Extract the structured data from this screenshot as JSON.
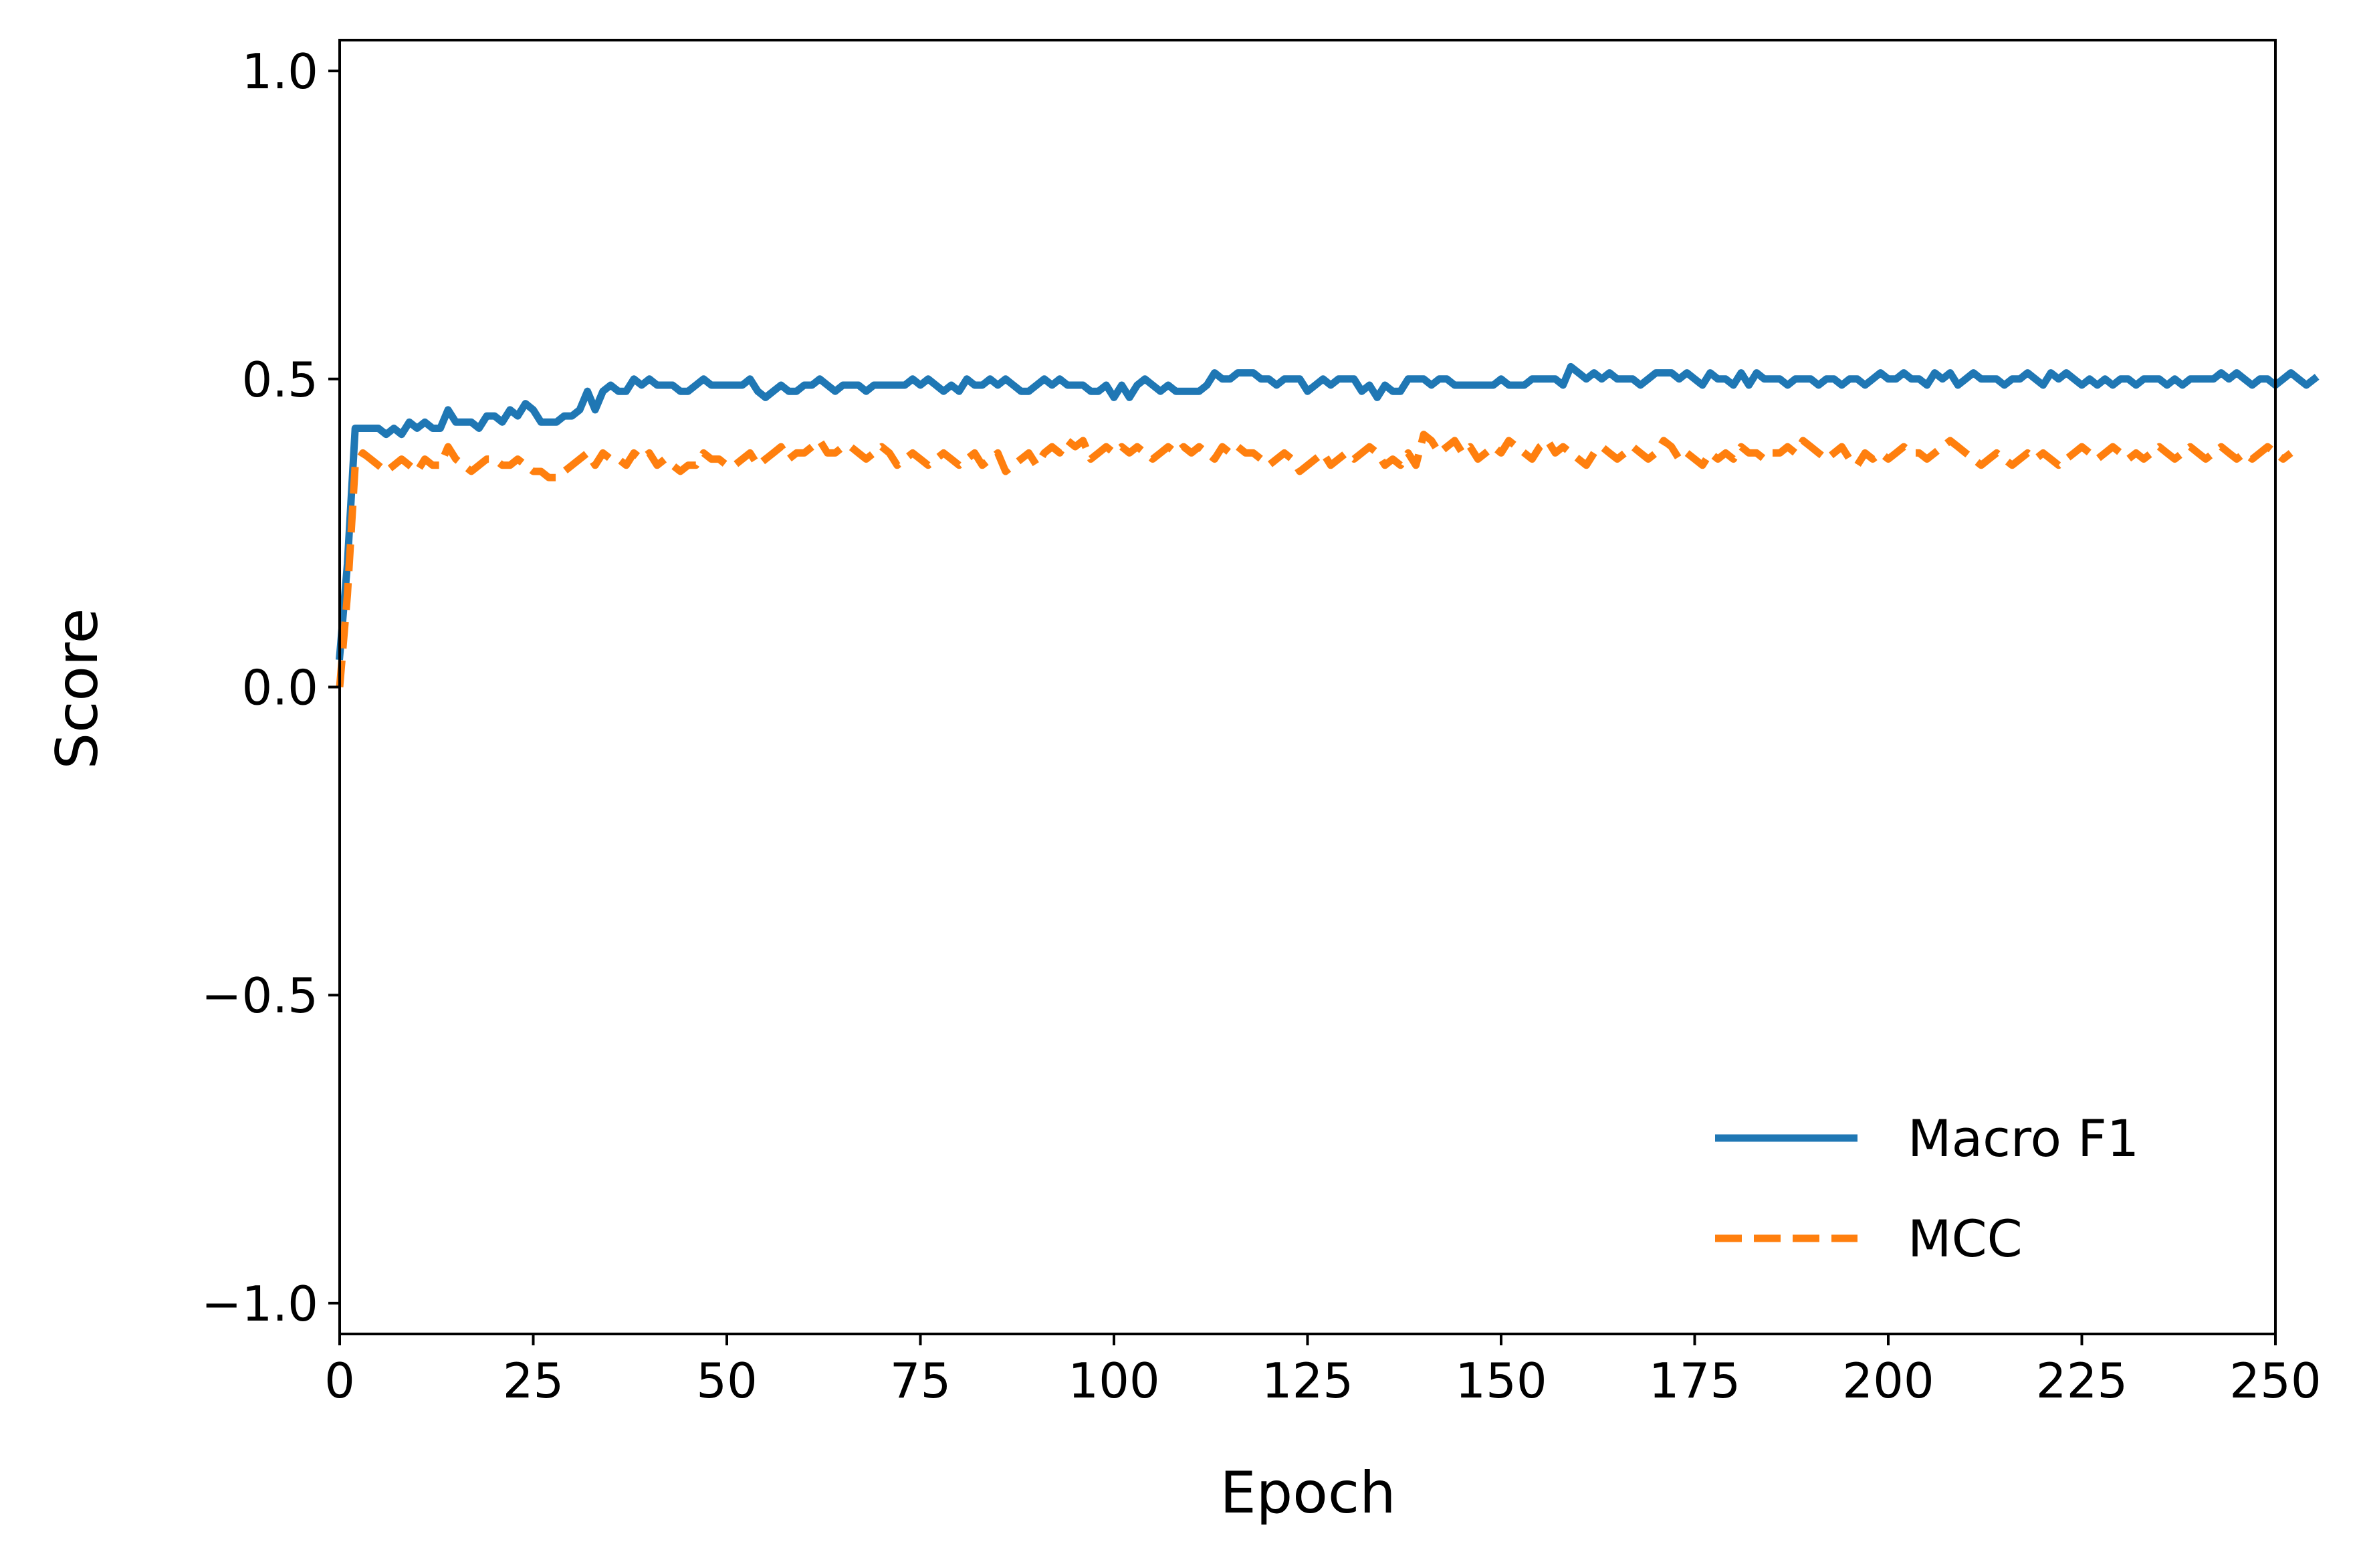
{
  "chart_data": {
    "type": "line",
    "title": "",
    "xlabel": "Epoch",
    "ylabel": "Score",
    "xlim": [
      0,
      250
    ],
    "ylim": [
      -1.05,
      1.05
    ],
    "xticks": [
      0,
      25,
      50,
      75,
      100,
      125,
      150,
      175,
      200,
      225,
      250
    ],
    "xtick_labels": [
      "0",
      "25",
      "50",
      "75",
      "100",
      "125",
      "150",
      "175",
      "200",
      "225",
      "250"
    ],
    "yticks": [
      -1.0,
      -0.5,
      0.0,
      0.5,
      1.0
    ],
    "ytick_labels": [
      "−1.0",
      "−0.5",
      "0.0",
      "0.5",
      "1.0"
    ],
    "grid": false,
    "legend_position": "lower-right",
    "x_start": 0,
    "x_step": 1,
    "series": [
      {
        "name": "Macro F1",
        "color": "#1f77b4",
        "style": "solid",
        "values": [
          0.05,
          0.2,
          0.42,
          0.42,
          0.42,
          0.42,
          0.41,
          0.42,
          0.41,
          0.43,
          0.42,
          0.43,
          0.42,
          0.42,
          0.45,
          0.43,
          0.43,
          0.43,
          0.42,
          0.44,
          0.44,
          0.43,
          0.45,
          0.44,
          0.46,
          0.45,
          0.43,
          0.43,
          0.43,
          0.44,
          0.44,
          0.45,
          0.48,
          0.45,
          0.48,
          0.49,
          0.48,
          0.48,
          0.5,
          0.49,
          0.5,
          0.49,
          0.49,
          0.49,
          0.48,
          0.48,
          0.49,
          0.5,
          0.49,
          0.49,
          0.49,
          0.49,
          0.49,
          0.5,
          0.48,
          0.47,
          0.48,
          0.49,
          0.48,
          0.48,
          0.49,
          0.49,
          0.5,
          0.49,
          0.48,
          0.49,
          0.49,
          0.49,
          0.48,
          0.49,
          0.49,
          0.49,
          0.49,
          0.49,
          0.5,
          0.49,
          0.5,
          0.49,
          0.48,
          0.49,
          0.48,
          0.5,
          0.49,
          0.49,
          0.5,
          0.49,
          0.5,
          0.49,
          0.48,
          0.48,
          0.49,
          0.5,
          0.49,
          0.5,
          0.49,
          0.49,
          0.49,
          0.48,
          0.48,
          0.49,
          0.47,
          0.49,
          0.47,
          0.49,
          0.5,
          0.49,
          0.48,
          0.49,
          0.48,
          0.48,
          0.48,
          0.48,
          0.49,
          0.51,
          0.5,
          0.5,
          0.51,
          0.51,
          0.51,
          0.5,
          0.5,
          0.49,
          0.5,
          0.5,
          0.5,
          0.48,
          0.49,
          0.5,
          0.49,
          0.5,
          0.5,
          0.5,
          0.48,
          0.49,
          0.47,
          0.49,
          0.48,
          0.48,
          0.5,
          0.5,
          0.5,
          0.49,
          0.5,
          0.5,
          0.49,
          0.49,
          0.49,
          0.49,
          0.49,
          0.49,
          0.5,
          0.49,
          0.49,
          0.49,
          0.5,
          0.5,
          0.5,
          0.5,
          0.49,
          0.52,
          0.51,
          0.5,
          0.51,
          0.5,
          0.51,
          0.5,
          0.5,
          0.5,
          0.49,
          0.5,
          0.51,
          0.51,
          0.51,
          0.5,
          0.51,
          0.5,
          0.49,
          0.51,
          0.5,
          0.5,
          0.49,
          0.51,
          0.49,
          0.51,
          0.5,
          0.5,
          0.5,
          0.49,
          0.5,
          0.5,
          0.5,
          0.49,
          0.5,
          0.5,
          0.49,
          0.5,
          0.5,
          0.49,
          0.5,
          0.51,
          0.5,
          0.5,
          0.51,
          0.5,
          0.5,
          0.49,
          0.51,
          0.5,
          0.51,
          0.49,
          0.5,
          0.51,
          0.5,
          0.5,
          0.5,
          0.49,
          0.5,
          0.5,
          0.51,
          0.5,
          0.49,
          0.51,
          0.5,
          0.51,
          0.5,
          0.49,
          0.5,
          0.49,
          0.5,
          0.49,
          0.5,
          0.5,
          0.49,
          0.5,
          0.5,
          0.5,
          0.49,
          0.5,
          0.49,
          0.5,
          0.5,
          0.5,
          0.5,
          0.51,
          0.5,
          0.51,
          0.5,
          0.49,
          0.5,
          0.5,
          0.49,
          0.5,
          0.51,
          0.5,
          0.49,
          0.5
        ]
      },
      {
        "name": "MCC",
        "color": "#ff7f0e",
        "style": "dashed",
        "values": [
          0.0,
          0.15,
          0.36,
          0.38,
          0.37,
          0.36,
          0.35,
          0.36,
          0.37,
          0.36,
          0.35,
          0.37,
          0.36,
          0.36,
          0.39,
          0.37,
          0.36,
          0.35,
          0.36,
          0.37,
          0.37,
          0.36,
          0.36,
          0.37,
          0.36,
          0.35,
          0.35,
          0.34,
          0.34,
          0.35,
          0.36,
          0.37,
          0.38,
          0.36,
          0.38,
          0.37,
          0.37,
          0.36,
          0.38,
          0.37,
          0.38,
          0.36,
          0.37,
          0.36,
          0.35,
          0.36,
          0.36,
          0.38,
          0.37,
          0.37,
          0.36,
          0.36,
          0.37,
          0.38,
          0.36,
          0.37,
          0.38,
          0.39,
          0.37,
          0.38,
          0.38,
          0.39,
          0.4,
          0.38,
          0.38,
          0.39,
          0.39,
          0.38,
          0.37,
          0.38,
          0.39,
          0.38,
          0.36,
          0.37,
          0.38,
          0.37,
          0.36,
          0.37,
          0.38,
          0.37,
          0.36,
          0.37,
          0.38,
          0.36,
          0.37,
          0.38,
          0.35,
          0.36,
          0.37,
          0.38,
          0.36,
          0.38,
          0.39,
          0.38,
          0.4,
          0.39,
          0.4,
          0.37,
          0.38,
          0.39,
          0.38,
          0.39,
          0.38,
          0.39,
          0.38,
          0.37,
          0.38,
          0.39,
          0.38,
          0.39,
          0.38,
          0.39,
          0.38,
          0.37,
          0.39,
          0.38,
          0.39,
          0.38,
          0.38,
          0.37,
          0.36,
          0.37,
          0.38,
          0.37,
          0.35,
          0.36,
          0.37,
          0.38,
          0.36,
          0.37,
          0.38,
          0.37,
          0.38,
          0.39,
          0.38,
          0.36,
          0.37,
          0.36,
          0.38,
          0.36,
          0.41,
          0.4,
          0.38,
          0.39,
          0.4,
          0.38,
          0.39,
          0.37,
          0.38,
          0.39,
          0.38,
          0.4,
          0.39,
          0.38,
          0.37,
          0.39,
          0.4,
          0.38,
          0.39,
          0.38,
          0.37,
          0.36,
          0.38,
          0.39,
          0.38,
          0.37,
          0.38,
          0.39,
          0.38,
          0.37,
          0.38,
          0.4,
          0.39,
          0.37,
          0.38,
          0.37,
          0.36,
          0.38,
          0.37,
          0.38,
          0.37,
          0.39,
          0.38,
          0.38,
          0.37,
          0.38,
          0.38,
          0.39,
          0.38,
          0.4,
          0.39,
          0.38,
          0.37,
          0.38,
          0.39,
          0.37,
          0.36,
          0.38,
          0.37,
          0.38,
          0.37,
          0.38,
          0.39,
          0.38,
          0.38,
          0.37,
          0.38,
          0.39,
          0.4,
          0.39,
          0.38,
          0.37,
          0.36,
          0.37,
          0.38,
          0.37,
          0.36,
          0.37,
          0.38,
          0.37,
          0.38,
          0.37,
          0.36,
          0.37,
          0.38,
          0.39,
          0.38,
          0.37,
          0.38,
          0.39,
          0.38,
          0.37,
          0.38,
          0.37,
          0.38,
          0.39,
          0.38,
          0.37,
          0.38,
          0.39,
          0.38,
          0.37,
          0.38,
          0.39,
          0.38,
          0.37,
          0.38,
          0.37,
          0.38,
          0.39,
          0.38,
          0.37,
          0.38
        ]
      }
    ]
  }
}
